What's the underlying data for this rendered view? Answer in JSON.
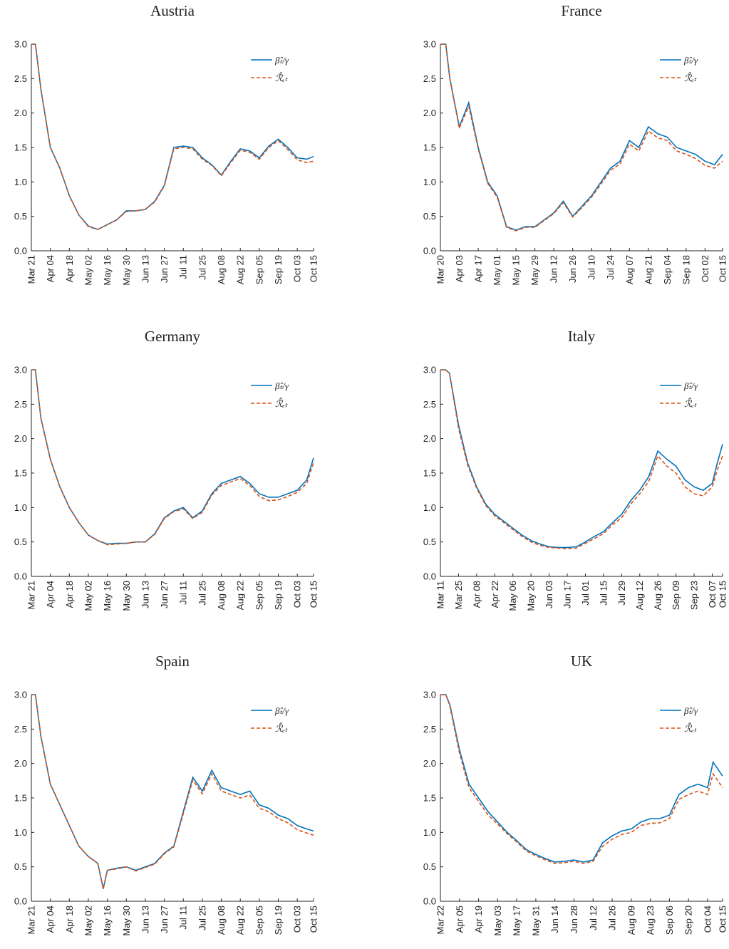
{
  "chart_data": [
    {
      "type": "line",
      "title": "Austria",
      "legend": "upper right",
      "ylim": [
        0,
        3
      ],
      "yticks": [
        {
          "value": 0,
          "label": "0.0"
        },
        0.5,
        {
          "value": 1,
          "label": "1.0"
        },
        1.5,
        {
          "value": 2,
          "label": "2.0"
        },
        2.5,
        {
          "value": 3,
          "label": "3.0"
        }
      ],
      "xlim": [
        "Mar 21",
        "Oct 15"
      ],
      "xticks": [
        "Mar 21",
        "Apr 04",
        "Apr 18",
        "May 02",
        "May 16",
        "May 30",
        "Jun 13",
        "Jun 27",
        "Jul 11",
        "Jul 25",
        "Aug 08",
        "Aug 22",
        "Sep 05",
        "Sep 19",
        "Oct 03",
        "Oct 15"
      ],
      "x": [
        "Mar 21",
        "Mar 24",
        "Mar 28",
        "Apr 04",
        "Apr 11",
        "Apr 18",
        "Apr 25",
        "May 02",
        "May 09",
        "May 16",
        "May 23",
        "May 30",
        "Jun 06",
        "Jun 13",
        "Jun 20",
        "Jun 27",
        "Jul 04",
        "Jul 11",
        "Jul 18",
        "Jul 25",
        "Aug 01",
        "Aug 08",
        "Aug 15",
        "Aug 22",
        "Aug 29",
        "Sep 05",
        "Sep 12",
        "Sep 19",
        "Sep 26",
        "Oct 03",
        "Oct 10",
        "Oct 15"
      ],
      "series": [
        {
          "name": "β̂ₜ/γ",
          "color": "#0072bd",
          "style": "solid",
          "values": [
            3.0,
            3.0,
            2.35,
            1.5,
            1.2,
            0.8,
            0.52,
            0.36,
            0.31,
            0.38,
            0.45,
            0.58,
            0.58,
            0.6,
            0.72,
            0.95,
            1.5,
            1.52,
            1.5,
            1.35,
            1.25,
            1.1,
            1.3,
            1.48,
            1.45,
            1.35,
            1.52,
            1.62,
            1.5,
            1.35,
            1.33,
            1.37
          ]
        },
        {
          "name": "ℛ̂ₑₜ",
          "color": "#d95319",
          "style": "dashed",
          "values": [
            3.0,
            3.0,
            2.35,
            1.5,
            1.2,
            0.8,
            0.52,
            0.35,
            0.31,
            0.38,
            0.45,
            0.57,
            0.58,
            0.6,
            0.71,
            0.94,
            1.48,
            1.5,
            1.48,
            1.33,
            1.24,
            1.09,
            1.28,
            1.46,
            1.43,
            1.33,
            1.5,
            1.6,
            1.47,
            1.32,
            1.28,
            1.3
          ]
        }
      ]
    },
    {
      "type": "line",
      "title": "France",
      "legend": "upper right",
      "ylim": [
        0,
        3
      ],
      "yticks": [
        {
          "value": 0,
          "label": "0.0"
        },
        0.5,
        {
          "value": 1,
          "label": "1.0"
        },
        1.5,
        {
          "value": 2,
          "label": "2.0"
        },
        2.5,
        {
          "value": 3,
          "label": "3.0"
        }
      ],
      "xlim": [
        "Mar 20",
        "Oct 15"
      ],
      "xticks": [
        "Mar 20",
        "Apr 03",
        "Apr 17",
        "May 01",
        "May 15",
        "May 29",
        "Jun 12",
        "Jun 26",
        "Jul 10",
        "Jul 24",
        "Aug 07",
        "Aug 21",
        "Sep 04",
        "Sep 18",
        "Oct 02",
        "Oct 15"
      ],
      "x": [
        "Mar 20",
        "Mar 24",
        "Mar 27",
        "Apr 03",
        "Apr 10",
        "Apr 17",
        "Apr 24",
        "May 01",
        "May 08",
        "May 15",
        "May 22",
        "May 29",
        "Jun 05",
        "Jun 12",
        "Jun 19",
        "Jun 26",
        "Jul 03",
        "Jul 10",
        "Jul 17",
        "Jul 24",
        "Jul 31",
        "Aug 07",
        "Aug 14",
        "Aug 21",
        "Aug 28",
        "Sep 04",
        "Sep 11",
        "Sep 18",
        "Sep 25",
        "Oct 02",
        "Oct 09",
        "Oct 15"
      ],
      "series": [
        {
          "name": "β̂ₜ/γ",
          "color": "#0072bd",
          "style": "solid",
          "values": [
            3.0,
            3.0,
            2.5,
            1.8,
            2.15,
            1.5,
            1.0,
            0.8,
            0.35,
            0.3,
            0.35,
            0.35,
            0.45,
            0.55,
            0.72,
            0.5,
            0.65,
            0.8,
            1.0,
            1.2,
            1.3,
            1.6,
            1.5,
            1.8,
            1.7,
            1.65,
            1.5,
            1.45,
            1.4,
            1.3,
            1.25,
            1.4
          ]
        },
        {
          "name": "ℛ̂ₑₜ",
          "color": "#d95319",
          "style": "dashed",
          "values": [
            3.0,
            3.0,
            2.5,
            1.78,
            2.1,
            1.48,
            0.98,
            0.78,
            0.34,
            0.29,
            0.34,
            0.34,
            0.44,
            0.54,
            0.7,
            0.49,
            0.63,
            0.78,
            0.97,
            1.17,
            1.26,
            1.55,
            1.45,
            1.74,
            1.64,
            1.6,
            1.45,
            1.4,
            1.34,
            1.24,
            1.2,
            1.3
          ]
        }
      ]
    },
    {
      "type": "line",
      "title": "Germany",
      "legend": "upper right",
      "ylim": [
        0,
        3
      ],
      "yticks": [
        {
          "value": 0,
          "label": "0.0"
        },
        0.5,
        {
          "value": 1,
          "label": "1.0"
        },
        1.5,
        {
          "value": 2,
          "label": "2.0"
        },
        2.5,
        {
          "value": 3,
          "label": "3.0"
        }
      ],
      "xlim": [
        "Mar 21",
        "Oct 15"
      ],
      "xticks": [
        "Mar 21",
        "Apr 04",
        "Apr 18",
        "May 02",
        "May 16",
        "May 30",
        "Jun 13",
        "Jun 27",
        "Jul 11",
        "Jul 25",
        "Aug 08",
        "Aug 22",
        "Sep 05",
        "Sep 19",
        "Oct 03",
        "Oct 15"
      ],
      "x": [
        "Mar 21",
        "Mar 24",
        "Mar 28",
        "Apr 04",
        "Apr 11",
        "Apr 18",
        "Apr 25",
        "May 02",
        "May 09",
        "May 16",
        "May 23",
        "May 30",
        "Jun 06",
        "Jun 13",
        "Jun 20",
        "Jun 27",
        "Jul 04",
        "Jul 11",
        "Jul 18",
        "Jul 25",
        "Aug 01",
        "Aug 08",
        "Aug 15",
        "Aug 22",
        "Aug 29",
        "Sep 05",
        "Sep 12",
        "Sep 19",
        "Sep 26",
        "Oct 03",
        "Oct 10",
        "Oct 15"
      ],
      "series": [
        {
          "name": "β̂ₜ/γ",
          "color": "#0072bd",
          "style": "solid",
          "values": [
            3.0,
            3.0,
            2.3,
            1.7,
            1.3,
            1.0,
            0.78,
            0.6,
            0.52,
            0.47,
            0.48,
            0.48,
            0.5,
            0.5,
            0.62,
            0.85,
            0.95,
            1.0,
            0.85,
            0.95,
            1.2,
            1.35,
            1.4,
            1.45,
            1.35,
            1.2,
            1.15,
            1.15,
            1.2,
            1.25,
            1.4,
            1.72
          ]
        },
        {
          "name": "ℛ̂ₑₜ",
          "color": "#d95319",
          "style": "dashed",
          "values": [
            3.0,
            3.0,
            2.3,
            1.7,
            1.3,
            1.0,
            0.78,
            0.6,
            0.52,
            0.46,
            0.47,
            0.48,
            0.5,
            0.5,
            0.61,
            0.84,
            0.94,
            0.98,
            0.84,
            0.93,
            1.18,
            1.32,
            1.37,
            1.42,
            1.32,
            1.16,
            1.1,
            1.11,
            1.16,
            1.22,
            1.35,
            1.65
          ]
        }
      ]
    },
    {
      "type": "line",
      "title": "Italy",
      "legend": "upper right",
      "ylim": [
        0,
        3
      ],
      "yticks": [
        {
          "value": 0,
          "label": "0.0"
        },
        0.5,
        {
          "value": 1,
          "label": "1.0"
        },
        1.5,
        {
          "value": 2,
          "label": "2.0"
        },
        2.5,
        {
          "value": 3,
          "label": "3.0"
        }
      ],
      "xlim": [
        "Mar 11",
        "Oct 15"
      ],
      "xticks": [
        "Mar 11",
        "Mar 25",
        "Apr 08",
        "Apr 22",
        "May 06",
        "May 20",
        "Jun 03",
        "Jun 17",
        "Jul 01",
        "Jul 15",
        "Jul 29",
        "Aug 12",
        "Aug 26",
        "Sep 09",
        "Sep 23",
        "Oct 07",
        "Oct 15"
      ],
      "x": [
        "Mar 11",
        "Mar 15",
        "Mar 18",
        "Mar 25",
        "Apr 01",
        "Apr 08",
        "Apr 15",
        "Apr 22",
        "Apr 29",
        "May 06",
        "May 13",
        "May 20",
        "May 27",
        "Jun 03",
        "Jun 10",
        "Jun 17",
        "Jun 24",
        "Jul 01",
        "Jul 08",
        "Jul 15",
        "Jul 22",
        "Jul 29",
        "Aug 05",
        "Aug 12",
        "Aug 19",
        "Aug 26",
        "Sep 02",
        "Sep 09",
        "Sep 16",
        "Sep 23",
        "Sep 30",
        "Oct 07",
        "Oct 11",
        "Oct 15"
      ],
      "series": [
        {
          "name": "β̂ₜ/γ",
          "color": "#0072bd",
          "style": "solid",
          "values": [
            3.0,
            3.0,
            2.95,
            2.2,
            1.65,
            1.3,
            1.05,
            0.9,
            0.8,
            0.7,
            0.6,
            0.52,
            0.47,
            0.43,
            0.42,
            0.42,
            0.43,
            0.5,
            0.58,
            0.65,
            0.78,
            0.9,
            1.1,
            1.25,
            1.45,
            1.82,
            1.7,
            1.6,
            1.4,
            1.3,
            1.25,
            1.35,
            1.65,
            1.92
          ]
        },
        {
          "name": "ℛ̂ₑₜ",
          "color": "#d95319",
          "style": "dashed",
          "values": [
            3.0,
            3.0,
            2.95,
            2.15,
            1.62,
            1.28,
            1.03,
            0.88,
            0.78,
            0.68,
            0.58,
            0.5,
            0.45,
            0.42,
            0.41,
            0.4,
            0.41,
            0.48,
            0.55,
            0.62,
            0.75,
            0.85,
            1.05,
            1.2,
            1.38,
            1.75,
            1.6,
            1.5,
            1.3,
            1.2,
            1.17,
            1.3,
            1.55,
            1.75
          ]
        }
      ]
    },
    {
      "type": "line",
      "title": "Spain",
      "legend": "upper right",
      "ylim": [
        0,
        3
      ],
      "yticks": [
        {
          "value": 0,
          "label": "0.0"
        },
        0.5,
        {
          "value": 1,
          "label": "1.0"
        },
        1.5,
        {
          "value": 2,
          "label": "2.0"
        },
        2.5,
        {
          "value": 3,
          "label": "3.0"
        }
      ],
      "xlim": [
        "Mar 21",
        "Oct 15"
      ],
      "xticks": [
        "Mar 21",
        "Apr 04",
        "Apr 18",
        "May 02",
        "May 16",
        "May 30",
        "Jun 13",
        "Jun 27",
        "Jul 11",
        "Jul 25",
        "Aug 08",
        "Aug 22",
        "Sep 05",
        "Sep 19",
        "Oct 03",
        "Oct 15"
      ],
      "x": [
        "Mar 21",
        "Mar 24",
        "Mar 28",
        "Apr 04",
        "Apr 11",
        "Apr 18",
        "Apr 25",
        "May 02",
        "May 09",
        "May 13",
        "May 16",
        "May 23",
        "May 30",
        "Jun 06",
        "Jun 13",
        "Jun 20",
        "Jun 27",
        "Jul 04",
        "Jul 11",
        "Jul 18",
        "Jul 25",
        "Aug 01",
        "Aug 08",
        "Aug 15",
        "Aug 22",
        "Aug 29",
        "Sep 05",
        "Sep 12",
        "Sep 19",
        "Sep 26",
        "Oct 03",
        "Oct 10",
        "Oct 15"
      ],
      "series": [
        {
          "name": "β̂ₜ/γ",
          "color": "#0072bd",
          "style": "solid",
          "values": [
            3.0,
            3.0,
            2.4,
            1.7,
            1.4,
            1.1,
            0.8,
            0.65,
            0.55,
            0.18,
            0.45,
            0.48,
            0.5,
            0.45,
            0.5,
            0.55,
            0.7,
            0.8,
            1.3,
            1.8,
            1.6,
            1.9,
            1.65,
            1.6,
            1.55,
            1.6,
            1.4,
            1.35,
            1.25,
            1.2,
            1.1,
            1.05,
            1.02
          ]
        },
        {
          "name": "ℛ̂ₑₜ",
          "color": "#d95319",
          "style": "dashed",
          "values": [
            3.0,
            3.0,
            2.4,
            1.7,
            1.4,
            1.1,
            0.8,
            0.65,
            0.55,
            0.18,
            0.45,
            0.47,
            0.5,
            0.44,
            0.49,
            0.54,
            0.69,
            0.79,
            1.27,
            1.76,
            1.56,
            1.85,
            1.6,
            1.55,
            1.5,
            1.54,
            1.35,
            1.3,
            1.2,
            1.14,
            1.04,
            0.99,
            0.96
          ]
        }
      ]
    },
    {
      "type": "line",
      "title": "UK",
      "legend": "upper right",
      "ylim": [
        0,
        3
      ],
      "yticks": [
        {
          "value": 0,
          "label": "0.0"
        },
        0.5,
        {
          "value": 1,
          "label": "1.0"
        },
        1.5,
        {
          "value": 2,
          "label": "2.0"
        },
        2.5,
        {
          "value": 3,
          "label": "3.0"
        }
      ],
      "xlim": [
        "Mar 22",
        "Oct 15"
      ],
      "xticks": [
        "Mar 22",
        "Apr 05",
        "Apr 19",
        "May 03",
        "May 17",
        "May 31",
        "Jun 14",
        "Jun 28",
        "Jul 12",
        "Jul 26",
        "Aug 09",
        "Aug 23",
        "Sep 06",
        "Sep 20",
        "Oct 04",
        "Oct 15"
      ],
      "x": [
        "Mar 22",
        "Mar 26",
        "Mar 29",
        "Apr 05",
        "Apr 12",
        "Apr 19",
        "Apr 26",
        "May 03",
        "May 10",
        "May 17",
        "May 24",
        "May 31",
        "Jun 07",
        "Jun 14",
        "Jun 21",
        "Jun 28",
        "Jul 05",
        "Jul 12",
        "Jul 19",
        "Jul 26",
        "Aug 02",
        "Aug 09",
        "Aug 16",
        "Aug 23",
        "Aug 30",
        "Sep 06",
        "Sep 13",
        "Sep 20",
        "Sep 27",
        "Oct 04",
        "Oct 08",
        "Oct 15"
      ],
      "series": [
        {
          "name": "β̂ₜ/γ",
          "color": "#0072bd",
          "style": "solid",
          "values": [
            3.0,
            3.0,
            2.85,
            2.2,
            1.7,
            1.5,
            1.3,
            1.15,
            1.0,
            0.88,
            0.75,
            0.68,
            0.62,
            0.57,
            0.58,
            0.6,
            0.57,
            0.6,
            0.85,
            0.95,
            1.02,
            1.05,
            1.15,
            1.2,
            1.2,
            1.25,
            1.55,
            1.65,
            1.7,
            1.65,
            2.02,
            1.82
          ]
        },
        {
          "name": "ℛ̂ₑₜ",
          "color": "#d95319",
          "style": "dashed",
          "values": [
            3.0,
            3.0,
            2.83,
            2.15,
            1.65,
            1.45,
            1.25,
            1.12,
            0.98,
            0.86,
            0.73,
            0.66,
            0.6,
            0.55,
            0.56,
            0.58,
            0.55,
            0.58,
            0.8,
            0.9,
            0.97,
            1.0,
            1.1,
            1.13,
            1.14,
            1.2,
            1.48,
            1.55,
            1.6,
            1.55,
            1.85,
            1.65
          ]
        }
      ]
    }
  ]
}
